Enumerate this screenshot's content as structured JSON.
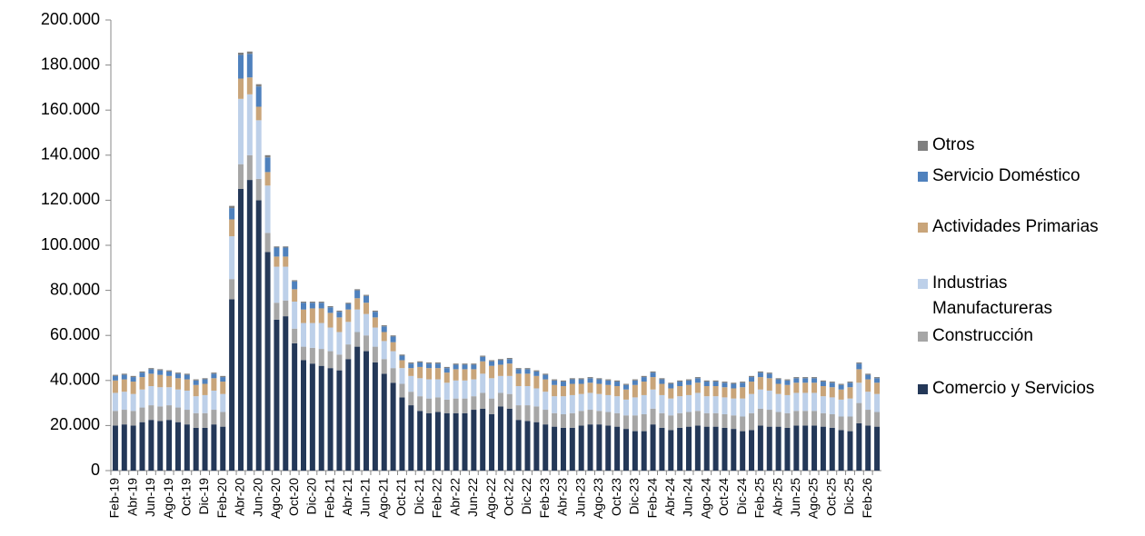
{
  "chart_data": {
    "type": "stacked_bar",
    "categories": [
      "Feb-19",
      null,
      "Abr-19",
      null,
      "Jun-19",
      null,
      "Ago-19",
      null,
      "Oct-19",
      null,
      "Dic-19",
      null,
      "Feb-20",
      null,
      "Abr-20",
      null,
      "Jun-20",
      null,
      "Ago-20",
      null,
      "Oct-20",
      null,
      "Dic-20",
      null,
      "Feb-21",
      null,
      "Abr-21",
      null,
      "Jun-21",
      null,
      "Ago-21",
      null,
      "Oct-21",
      null,
      "Dic-21",
      null,
      "Feb-22",
      null,
      "Abr-22",
      null,
      "Jun-22",
      null,
      "Ago-22",
      null,
      "Oct-22",
      null,
      "Dic-22",
      null,
      "Feb-23",
      null,
      "Abr-23",
      null,
      "Jun-23",
      null,
      "Ago-23",
      null,
      "Oct-23",
      null,
      "Dic-23",
      null,
      "Feb-24",
      null,
      "Abr-24",
      null,
      "Jun-24",
      null,
      "Ago-24",
      null,
      "Oct-24",
      null,
      "Dic-24",
      null,
      "Feb-25",
      null,
      "Abr-25",
      null,
      "Jun-25",
      null,
      "Ago-25",
      null,
      "Oct-25",
      null,
      "Dic-25",
      null,
      "Feb-26",
      null
    ],
    "series": [
      {
        "name": "Comercio y Servicios",
        "color": "#243858",
        "values": [
          20000,
          20500,
          20000,
          21500,
          22500,
          22000,
          22500,
          21500,
          20500,
          19000,
          19000,
          20500,
          19500,
          76000,
          125000,
          129000,
          120000,
          97000,
          67000,
          68500,
          56500,
          49000,
          47500,
          46500,
          45500,
          44500,
          49500,
          55000,
          53000,
          48000,
          43000,
          39000,
          32500,
          29000,
          26500,
          25500,
          26000,
          25500,
          25500,
          25500,
          27000,
          27500,
          25000,
          28500,
          27500,
          22500,
          22000,
          21500,
          20500,
          19500,
          19000,
          19000,
          20000,
          20500,
          20500,
          20000,
          19500,
          18500,
          17500,
          17500,
          20500,
          19000,
          18000,
          19000,
          19500,
          20000,
          19500,
          19500,
          19000,
          18500,
          17500,
          18000,
          20000,
          19500,
          19500,
          19000,
          20000,
          20000,
          20000,
          19500,
          19000,
          18000,
          17500,
          21000,
          20000,
          19500
        ]
      },
      {
        "name": "Construcción",
        "color": "#a6a6a6",
        "values": [
          6500,
          6500,
          6500,
          6500,
          6500,
          6500,
          6500,
          6500,
          6500,
          6500,
          6500,
          6500,
          6500,
          9000,
          11000,
          11000,
          9500,
          8500,
          7500,
          7000,
          6500,
          6000,
          7000,
          7500,
          7500,
          7000,
          6500,
          6500,
          7000,
          7000,
          6500,
          6500,
          6000,
          6000,
          6500,
          6500,
          6500,
          6000,
          6500,
          6500,
          6000,
          7000,
          7000,
          6000,
          6500,
          6500,
          7000,
          7000,
          6500,
          6000,
          6000,
          6500,
          6500,
          6500,
          6000,
          6000,
          6000,
          6000,
          7000,
          7500,
          7000,
          6500,
          6500,
          6500,
          6500,
          6500,
          6000,
          6000,
          6000,
          6000,
          6500,
          7500,
          7500,
          7500,
          6500,
          6500,
          6500,
          6500,
          6500,
          6000,
          6000,
          6000,
          6500,
          9000,
          7000,
          6500
        ]
      },
      {
        "name": "Industrias Manufactureras",
        "color": "#bdd0e9",
        "values": [
          8000,
          8000,
          7500,
          8000,
          8500,
          8500,
          8000,
          8000,
          8500,
          7500,
          8000,
          8500,
          8000,
          19000,
          29000,
          27000,
          26000,
          21000,
          16000,
          15000,
          12000,
          10500,
          11000,
          11500,
          10500,
          10000,
          10000,
          10000,
          9500,
          8500,
          8000,
          7500,
          7000,
          7000,
          8000,
          8500,
          8000,
          7500,
          8000,
          8000,
          7500,
          8500,
          9000,
          7500,
          8000,
          8500,
          8500,
          8000,
          8000,
          7500,
          8000,
          8000,
          7500,
          7500,
          7500,
          7500,
          7500,
          7000,
          8000,
          8500,
          8500,
          8000,
          7500,
          7500,
          7500,
          8000,
          7500,
          7500,
          7500,
          7500,
          8000,
          8500,
          8500,
          8500,
          8000,
          8000,
          8000,
          8000,
          8000,
          7500,
          7500,
          7500,
          8000,
          9000,
          8000,
          8000
        ]
      },
      {
        "name": "Actividades Primarias",
        "color": "#c9a57a",
        "values": [
          5500,
          5500,
          5500,
          5500,
          5500,
          5500,
          5000,
          5000,
          5000,
          5000,
          5000,
          5500,
          5500,
          7500,
          9000,
          7500,
          6000,
          6000,
          4500,
          4500,
          5500,
          6000,
          6500,
          6500,
          6500,
          6500,
          5500,
          5000,
          5000,
          4500,
          4000,
          4000,
          3500,
          3500,
          5000,
          5000,
          5000,
          4500,
          5000,
          5000,
          4500,
          5500,
          5500,
          5000,
          5500,
          5500,
          5500,
          5500,
          5500,
          5000,
          4500,
          5000,
          4500,
          4500,
          4500,
          4500,
          4500,
          4500,
          5500,
          6000,
          5500,
          5000,
          4500,
          4500,
          4500,
          4500,
          4500,
          4500,
          4500,
          4500,
          5000,
          5500,
          5500,
          5500,
          4500,
          4500,
          4500,
          4500,
          4500,
          4500,
          4500,
          4500,
          5000,
          6000,
          5500,
          5000
        ]
      },
      {
        "name": "Servicio Doméstico",
        "color": "#4f81bd",
        "values": [
          2000,
          2000,
          2000,
          2000,
          2000,
          2000,
          2000,
          2000,
          2000,
          2000,
          2000,
          2000,
          2000,
          5000,
          10500,
          10500,
          9000,
          6500,
          4000,
          4000,
          3500,
          3000,
          2500,
          2500,
          2500,
          2500,
          2500,
          3500,
          3000,
          2500,
          2500,
          2500,
          2000,
          2000,
          2000,
          2000,
          2000,
          2000,
          2000,
          2000,
          2000,
          2000,
          2000,
          2000,
          2000,
          2000,
          2000,
          2000,
          2000,
          2000,
          2000,
          2000,
          2000,
          2000,
          2000,
          2000,
          2000,
          2000,
          2000,
          2000,
          2000,
          2000,
          2000,
          2000,
          2000,
          2000,
          2000,
          2000,
          2000,
          2000,
          2000,
          2000,
          2000,
          2000,
          2000,
          2000,
          2000,
          2000,
          2000,
          2000,
          2000,
          2000,
          2000,
          2500,
          2000,
          2000
        ]
      },
      {
        "name": "Otros",
        "color": "#7f7f7f",
        "values": [
          500,
          500,
          500,
          500,
          500,
          500,
          500,
          500,
          500,
          500,
          500,
          500,
          500,
          1000,
          1000,
          1000,
          1000,
          1000,
          500,
          500,
          500,
          500,
          500,
          500,
          500,
          500,
          500,
          500,
          500,
          500,
          500,
          500,
          500,
          500,
          500,
          500,
          500,
          500,
          500,
          500,
          500,
          500,
          500,
          500,
          500,
          500,
          500,
          500,
          500,
          500,
          500,
          500,
          500,
          500,
          500,
          500,
          500,
          500,
          500,
          500,
          500,
          500,
          500,
          500,
          500,
          500,
          500,
          500,
          500,
          500,
          500,
          500,
          500,
          500,
          500,
          500,
          500,
          500,
          500,
          500,
          500,
          500,
          500,
          500,
          500,
          500
        ]
      }
    ],
    "ylim": [
      0,
      200000
    ],
    "yticks": [
      0,
      {
        "value": 20000,
        "label": "20.000"
      },
      {
        "value": 40000,
        "label": "40.000"
      },
      {
        "value": 60000,
        "label": "60.000"
      },
      {
        "value": 80000,
        "label": "80.000"
      },
      {
        "value": 100000,
        "label": "100.000"
      },
      {
        "value": 120000,
        "label": "120.000"
      },
      {
        "value": 140000,
        "label": "140.000"
      },
      {
        "value": 160000,
        "label": "160.000"
      },
      {
        "value": 180000,
        "label": "180.000"
      },
      {
        "value": 200000,
        "label": "200.000"
      }
    ],
    "legend": "right"
  }
}
